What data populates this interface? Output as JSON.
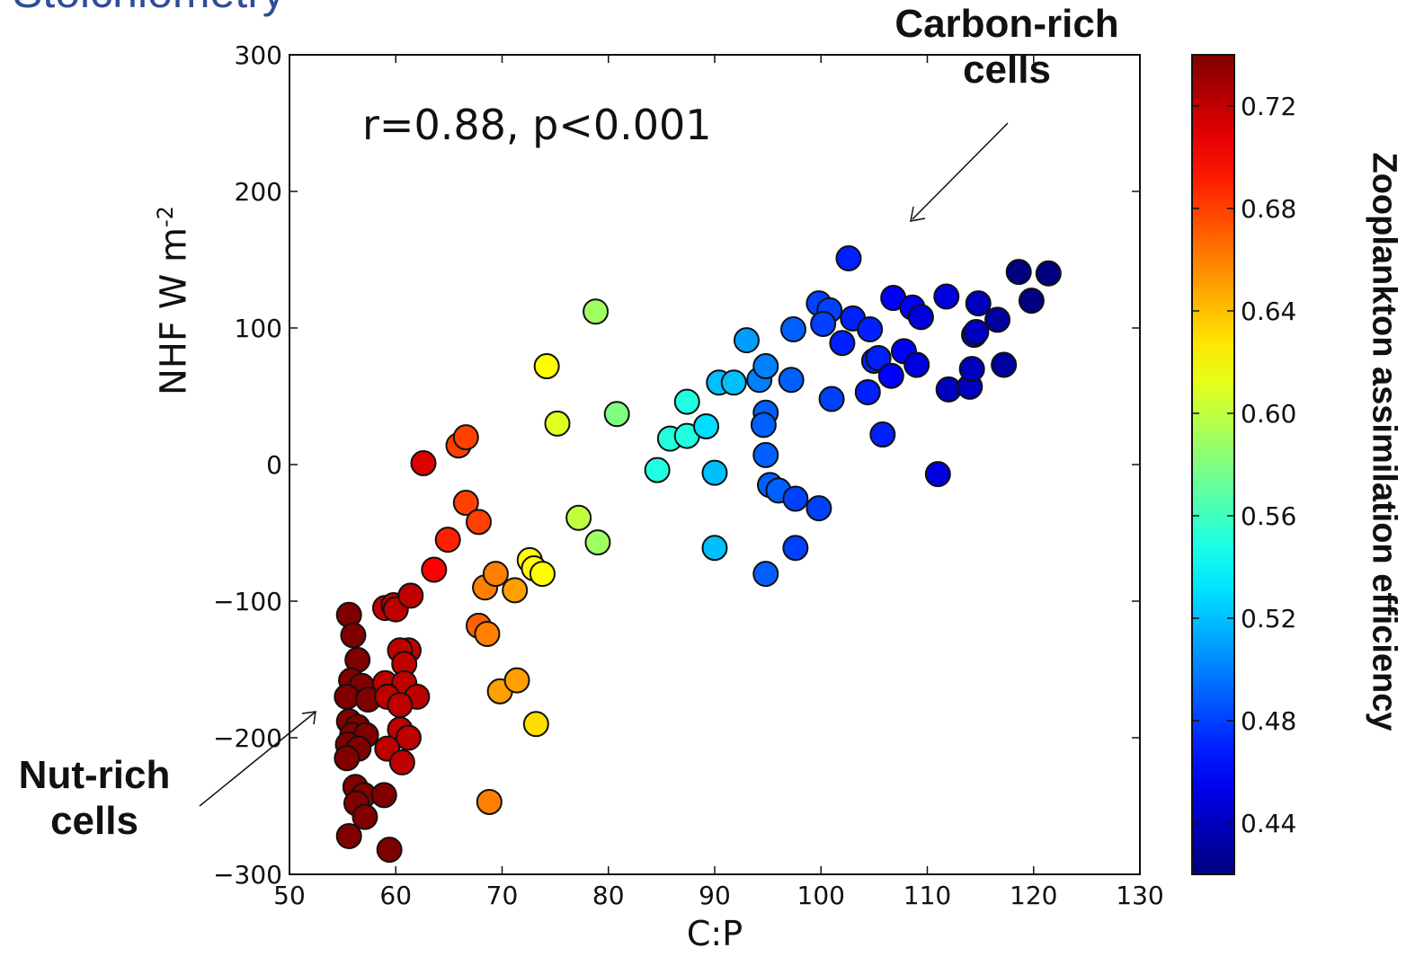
{
  "slide": {
    "title": "Stoichiometry"
  },
  "annotations": {
    "carbon_line1": "Carbon-rich",
    "carbon_line2": "cells",
    "nut_line1": "Nut-rich",
    "nut_line2": "cells",
    "stat": "r=0.88, p<0.001"
  },
  "chart_data": {
    "type": "scatter",
    "xlabel": "C:P",
    "ylabel_main": "NHF  W m",
    "ylabel_sup": "-2",
    "xlim": [
      50,
      130
    ],
    "ylim": [
      -300,
      300
    ],
    "xticks": [
      50,
      60,
      70,
      80,
      90,
      100,
      110,
      120,
      130
    ],
    "yticks": [
      -300,
      -200,
      -100,
      0,
      100,
      200,
      300
    ],
    "colorbar": {
      "label": "Zooplankton assimilation efficiency",
      "colormap": "jet",
      "range": [
        0.42,
        0.74
      ],
      "ticks": [
        0.44,
        0.48,
        0.52,
        0.56,
        0.6,
        0.64,
        0.68,
        0.72
      ]
    },
    "points": [
      {
        "x": 55.6,
        "y": -110,
        "c": 0.74
      },
      {
        "x": 56.0,
        "y": -125,
        "c": 0.74
      },
      {
        "x": 56.4,
        "y": -143,
        "c": 0.74
      },
      {
        "x": 55.8,
        "y": -158,
        "c": 0.74
      },
      {
        "x": 56.8,
        "y": -162,
        "c": 0.74
      },
      {
        "x": 55.4,
        "y": -170,
        "c": 0.74
      },
      {
        "x": 57.4,
        "y": -172,
        "c": 0.74
      },
      {
        "x": 55.6,
        "y": -188,
        "c": 0.74
      },
      {
        "x": 56.4,
        "y": -192,
        "c": 0.74
      },
      {
        "x": 55.9,
        "y": -198,
        "c": 0.74
      },
      {
        "x": 57.2,
        "y": -198,
        "c": 0.74
      },
      {
        "x": 55.5,
        "y": -205,
        "c": 0.74
      },
      {
        "x": 56.5,
        "y": -208,
        "c": 0.74
      },
      {
        "x": 55.4,
        "y": -215,
        "c": 0.74
      },
      {
        "x": 56.2,
        "y": -236,
        "c": 0.74
      },
      {
        "x": 57.0,
        "y": -242,
        "c": 0.74
      },
      {
        "x": 56.3,
        "y": -248,
        "c": 0.74
      },
      {
        "x": 58.9,
        "y": -242,
        "c": 0.74
      },
      {
        "x": 57.1,
        "y": -258,
        "c": 0.74
      },
      {
        "x": 55.6,
        "y": -272,
        "c": 0.74
      },
      {
        "x": 59.4,
        "y": -282,
        "c": 0.74
      },
      {
        "x": 59.0,
        "y": -105,
        "c": 0.72
      },
      {
        "x": 59.8,
        "y": -103,
        "c": 0.72
      },
      {
        "x": 60.0,
        "y": -106,
        "c": 0.72
      },
      {
        "x": 61.4,
        "y": -96,
        "c": 0.72
      },
      {
        "x": 61.2,
        "y": -136,
        "c": 0.72
      },
      {
        "x": 60.4,
        "y": -136,
        "c": 0.72
      },
      {
        "x": 60.8,
        "y": -146,
        "c": 0.72
      },
      {
        "x": 59.0,
        "y": -160,
        "c": 0.72
      },
      {
        "x": 60.8,
        "y": -160,
        "c": 0.72
      },
      {
        "x": 59.2,
        "y": -170,
        "c": 0.72
      },
      {
        "x": 62.0,
        "y": -170,
        "c": 0.72
      },
      {
        "x": 60.4,
        "y": -176,
        "c": 0.72
      },
      {
        "x": 60.4,
        "y": -194,
        "c": 0.72
      },
      {
        "x": 61.2,
        "y": -200,
        "c": 0.72
      },
      {
        "x": 59.2,
        "y": -208,
        "c": 0.72
      },
      {
        "x": 60.6,
        "y": -218,
        "c": 0.72
      },
      {
        "x": 62.6,
        "y": 1,
        "c": 0.71
      },
      {
        "x": 63.6,
        "y": -77,
        "c": 0.7
      },
      {
        "x": 64.9,
        "y": -55,
        "c": 0.69
      },
      {
        "x": 65.9,
        "y": 14,
        "c": 0.68
      },
      {
        "x": 66.6,
        "y": 20,
        "c": 0.68
      },
      {
        "x": 66.6,
        "y": -28,
        "c": 0.68
      },
      {
        "x": 67.8,
        "y": -42,
        "c": 0.68
      },
      {
        "x": 67.8,
        "y": -118,
        "c": 0.67
      },
      {
        "x": 68.6,
        "y": -124,
        "c": 0.66
      },
      {
        "x": 68.4,
        "y": -90,
        "c": 0.66
      },
      {
        "x": 69.4,
        "y": -80,
        "c": 0.66
      },
      {
        "x": 71.2,
        "y": -92,
        "c": 0.65
      },
      {
        "x": 69.8,
        "y": -166,
        "c": 0.65
      },
      {
        "x": 71.4,
        "y": -158,
        "c": 0.65
      },
      {
        "x": 68.8,
        "y": -247,
        "c": 0.66
      },
      {
        "x": 73.2,
        "y": -190,
        "c": 0.63
      },
      {
        "x": 72.6,
        "y": -70,
        "c": 0.62
      },
      {
        "x": 73.0,
        "y": -76,
        "c": 0.62
      },
      {
        "x": 73.8,
        "y": -80,
        "c": 0.62
      },
      {
        "x": 74.2,
        "y": 72,
        "c": 0.62
      },
      {
        "x": 75.2,
        "y": 30,
        "c": 0.61
      },
      {
        "x": 77.2,
        "y": -39,
        "c": 0.6
      },
      {
        "x": 79.0,
        "y": -57,
        "c": 0.59
      },
      {
        "x": 78.8,
        "y": 112,
        "c": 0.59
      },
      {
        "x": 80.8,
        "y": 37,
        "c": 0.58
      },
      {
        "x": 84.6,
        "y": -4,
        "c": 0.55
      },
      {
        "x": 85.8,
        "y": 19,
        "c": 0.55
      },
      {
        "x": 87.4,
        "y": 21,
        "c": 0.55
      },
      {
        "x": 87.4,
        "y": 46,
        "c": 0.55
      },
      {
        "x": 89.2,
        "y": 28,
        "c": 0.53
      },
      {
        "x": 90.0,
        "y": -6,
        "c": 0.52
      },
      {
        "x": 90.0,
        "y": -61,
        "c": 0.52
      },
      {
        "x": 90.4,
        "y": 60,
        "c": 0.52
      },
      {
        "x": 91.8,
        "y": 60,
        "c": 0.52
      },
      {
        "x": 93.0,
        "y": 91,
        "c": 0.51
      },
      {
        "x": 94.2,
        "y": 62,
        "c": 0.5
      },
      {
        "x": 94.8,
        "y": 72,
        "c": 0.5
      },
      {
        "x": 94.8,
        "y": 38,
        "c": 0.49
      },
      {
        "x": 94.6,
        "y": 29,
        "c": 0.49
      },
      {
        "x": 94.8,
        "y": 7,
        "c": 0.49
      },
      {
        "x": 95.2,
        "y": -15,
        "c": 0.49
      },
      {
        "x": 96.0,
        "y": -19,
        "c": 0.49
      },
      {
        "x": 94.8,
        "y": -80,
        "c": 0.49
      },
      {
        "x": 97.2,
        "y": 62,
        "c": 0.49
      },
      {
        "x": 97.4,
        "y": 99,
        "c": 0.49
      },
      {
        "x": 97.6,
        "y": -25,
        "c": 0.48
      },
      {
        "x": 97.6,
        "y": -61,
        "c": 0.48
      },
      {
        "x": 99.8,
        "y": -32,
        "c": 0.48
      },
      {
        "x": 99.8,
        "y": 118,
        "c": 0.48
      },
      {
        "x": 100.8,
        "y": 113,
        "c": 0.48
      },
      {
        "x": 100.2,
        "y": 103,
        "c": 0.48
      },
      {
        "x": 101.0,
        "y": 48,
        "c": 0.48
      },
      {
        "x": 102.0,
        "y": 89,
        "c": 0.47
      },
      {
        "x": 102.6,
        "y": 151,
        "c": 0.47
      },
      {
        "x": 103.0,
        "y": 107,
        "c": 0.47
      },
      {
        "x": 104.4,
        "y": 53,
        "c": 0.47
      },
      {
        "x": 104.6,
        "y": 99,
        "c": 0.47
      },
      {
        "x": 105.0,
        "y": 76,
        "c": 0.47
      },
      {
        "x": 105.4,
        "y": 78,
        "c": 0.47
      },
      {
        "x": 105.8,
        "y": 22,
        "c": 0.47
      },
      {
        "x": 106.6,
        "y": 65,
        "c": 0.46
      },
      {
        "x": 106.8,
        "y": 122,
        "c": 0.46
      },
      {
        "x": 107.8,
        "y": 83,
        "c": 0.46
      },
      {
        "x": 108.6,
        "y": 115,
        "c": 0.46
      },
      {
        "x": 109.0,
        "y": 73,
        "c": 0.45
      },
      {
        "x": 109.4,
        "y": 108,
        "c": 0.45
      },
      {
        "x": 111.0,
        "y": -7,
        "c": 0.45
      },
      {
        "x": 111.8,
        "y": 123,
        "c": 0.45
      },
      {
        "x": 112.0,
        "y": 55,
        "c": 0.44
      },
      {
        "x": 114.0,
        "y": 57,
        "c": 0.44
      },
      {
        "x": 114.2,
        "y": 70,
        "c": 0.44
      },
      {
        "x": 114.4,
        "y": 95,
        "c": 0.44
      },
      {
        "x": 114.6,
        "y": 97,
        "c": 0.44
      },
      {
        "x": 114.8,
        "y": 118,
        "c": 0.44
      },
      {
        "x": 116.6,
        "y": 106,
        "c": 0.43
      },
      {
        "x": 117.2,
        "y": 73,
        "c": 0.43
      },
      {
        "x": 118.6,
        "y": 141,
        "c": 0.42
      },
      {
        "x": 119.8,
        "y": 120,
        "c": 0.42
      },
      {
        "x": 121.4,
        "y": 140,
        "c": 0.42
      }
    ]
  }
}
